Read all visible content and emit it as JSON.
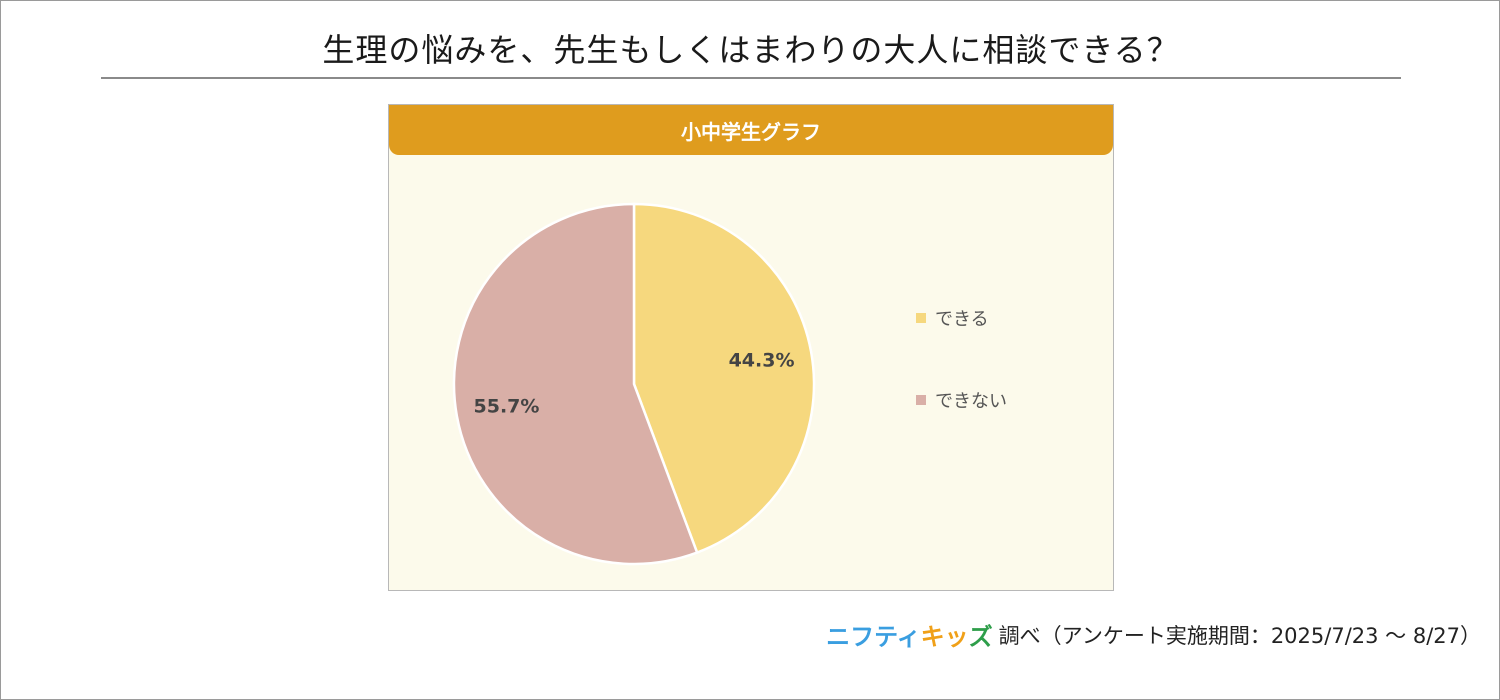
{
  "title": "生理の悩みを、先生もしくはまわりの大人に相談できる？",
  "panel": {
    "header": "小中学生グラフ"
  },
  "chart_data": {
    "type": "pie",
    "title": "小中学生グラフ",
    "slices": [
      {
        "label": "できる",
        "value": 44.3,
        "display": "44.3%",
        "color": "#f6d87e"
      },
      {
        "label": "できない",
        "value": 55.7,
        "display": "55.7%",
        "color": "#d9afa7"
      }
    ],
    "legend_position": "right",
    "start": "top",
    "direction": "clockwise"
  },
  "source": {
    "logo_part1": "ニフティ",
    "logo_part2": "キッ",
    "logo_part3": "ズ",
    "text": "調べ（アンケート実施期間：2025/7/23 ～ 8/27）"
  },
  "colors": {
    "header": "#df9c1e",
    "panel_bg": "#fcfaeb",
    "label_text": "#444444"
  }
}
